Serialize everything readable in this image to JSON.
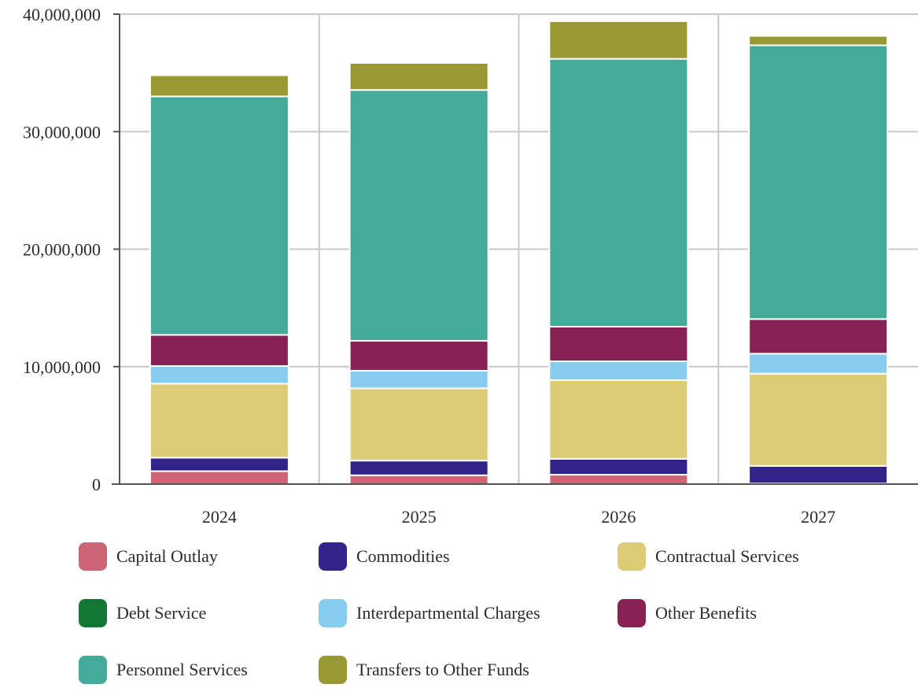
{
  "chart_data": {
    "type": "bar",
    "stacked": true,
    "categories": [
      "2024",
      "2025",
      "2026",
      "2027"
    ],
    "ylim": [
      0,
      40000000
    ],
    "yticks": [
      0,
      10000000,
      20000000,
      30000000,
      40000000
    ],
    "ytick_labels": [
      "0",
      "10,000,000",
      "20,000,000",
      "30,000,000",
      "40,000,000"
    ],
    "grid": true,
    "legend_position": "bottom",
    "series": [
      {
        "name": "Capital Outlay",
        "color": "#cc6677",
        "values": [
          1100000,
          750000,
          800000,
          50000
        ]
      },
      {
        "name": "Commodities",
        "color": "#332288",
        "values": [
          1150000,
          1250000,
          1350000,
          1500000
        ]
      },
      {
        "name": "Contractual Services",
        "color": "#ddcc77",
        "values": [
          6300000,
          6150000,
          6700000,
          7850000
        ]
      },
      {
        "name": "Debt Service",
        "color": "#117733",
        "values": [
          0,
          0,
          0,
          0
        ]
      },
      {
        "name": "Interdepartmental Charges",
        "color": "#88ccee",
        "values": [
          1500000,
          1500000,
          1600000,
          1700000
        ]
      },
      {
        "name": "Other Benefits",
        "color": "#882255",
        "values": [
          2650000,
          2550000,
          2950000,
          2950000
        ]
      },
      {
        "name": "Personnel Services",
        "color": "#44aa99",
        "values": [
          20300000,
          21350000,
          22800000,
          23300000
        ]
      },
      {
        "name": "Transfers to Other Funds",
        "color": "#999933",
        "values": [
          1800000,
          2300000,
          3200000,
          800000
        ]
      }
    ]
  }
}
